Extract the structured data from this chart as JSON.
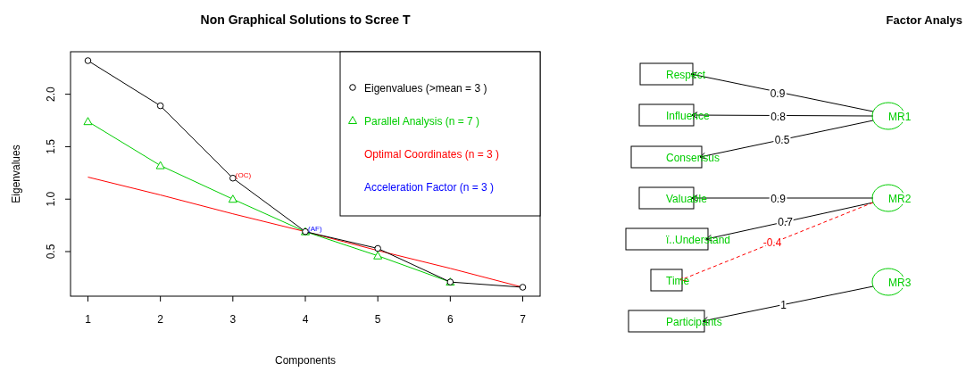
{
  "chart_data": [
    {
      "type": "line",
      "title": "Non Graphical Solutions to Scree T",
      "xlabel": "Components",
      "ylabel": "Eigenvalues",
      "x": [
        1,
        2,
        3,
        4,
        5,
        6,
        7
      ],
      "xlim": [
        0.76,
        7.24
      ],
      "xticks": [
        1,
        2,
        3,
        4,
        5,
        6,
        7
      ],
      "ylim": [
        0.075,
        2.405
      ],
      "yticks": [
        0.5,
        {
          "value": 1,
          "label": "1.0"
        },
        1.5,
        {
          "value": 2,
          "label": "2.0"
        }
      ],
      "grid": false,
      "legend": "top right",
      "series": [
        {
          "name": "Eigenvalues (>mean  =  3 )",
          "color": "#000000",
          "marker": "circle",
          "values": [
            2.32,
            1.89,
            1.2,
            0.69,
            0.53,
            0.21,
            0.16
          ]
        },
        {
          "name": "Parallel Analysis (n =  7 )",
          "color": "#00cd00",
          "marker": "triangle",
          "values": [
            1.74,
            1.32,
            1.0,
            0.69,
            0.46,
            0.21,
            null
          ]
        },
        {
          "name": "Optimal Coordinates (n =  3 )",
          "color": "#ff0000",
          "marker": "none",
          "values": [
            1.21,
            1.04,
            0.86,
            0.69,
            0.51,
            0.34,
            0.16
          ]
        },
        {
          "name": "Acceleration Factor (n =  3 )",
          "color": "#0000ff",
          "marker": "none",
          "values": [
            null,
            null,
            null,
            null,
            null,
            null,
            null
          ]
        }
      ],
      "annotations": [
        {
          "text": "(OC)",
          "x": 3,
          "y": 1.2
        },
        {
          "text": "(AF)",
          "x": 4,
          "y": 0.69
        }
      ]
    },
    {
      "type": "other",
      "title": "Factor Analys",
      "categories": [
        "Respect",
        "Influence",
        "Consensus",
        "Valuable",
        "ï..Understand",
        "Time",
        "Participants"
      ],
      "y_categories": [
        "MR1",
        "MR2",
        "MR3"
      ],
      "annotations": [
        "0.9",
        "0.8",
        "0.5",
        "0.9",
        "0.7",
        "-0.4",
        "1"
      ]
    }
  ]
}
